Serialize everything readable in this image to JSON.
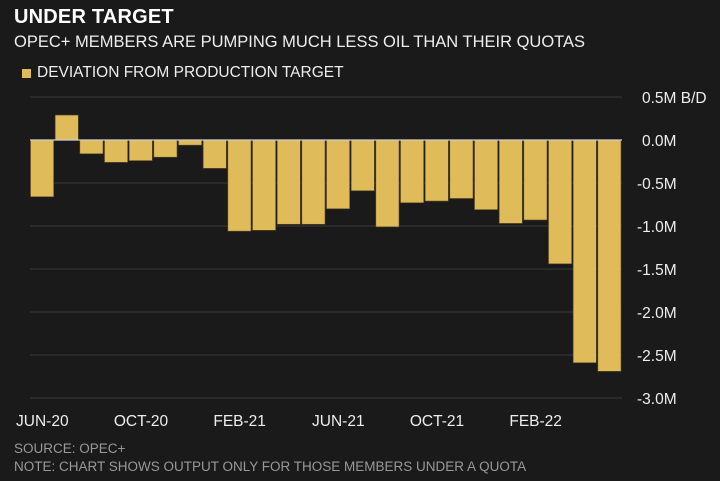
{
  "title": "UNDER TARGET",
  "subtitle": "OPEC+ MEMBERS ARE PUMPING MUCH LESS OIL THAN THEIR QUOTAS",
  "source": "SOURCE: OPEC+",
  "note": "NOTE: CHART SHOWS OUTPUT ONLY FOR THOSE MEMBERS UNDER A QUOTA",
  "colors": {
    "bar": "#dfbb5a",
    "background": "#1a1a1a",
    "grid": "#3a3a3a"
  },
  "chart_data": {
    "type": "bar",
    "legend": "DEVIATION FROM PRODUCTION TARGET",
    "legend_position": "top-left",
    "grid": true,
    "ylim": [
      -3.0,
      0.5
    ],
    "yticks": [
      0.5,
      0.0,
      -0.5,
      -1.0,
      -1.5,
      -2.0,
      -2.5,
      -3.0
    ],
    "ytick_labels": [
      "0.5M B/D",
      "0.0M",
      "-0.5M",
      "-1.0M",
      "-1.5M",
      "-2.0M",
      "-2.5M",
      "-3.0M"
    ],
    "yaxis_position": "right",
    "xtick_labels": [
      {
        "index": 0,
        "label": "JUN-20"
      },
      {
        "index": 4,
        "label": "OCT-20"
      },
      {
        "index": 8,
        "label": "FEB-21"
      },
      {
        "index": 12,
        "label": "JUN-21"
      },
      {
        "index": 16,
        "label": "OCT-21"
      },
      {
        "index": 20,
        "label": "FEB-22"
      }
    ],
    "categories": [
      "JUN-20",
      "JUL-20",
      "AUG-20",
      "SEP-20",
      "OCT-20",
      "NOV-20",
      "DEC-20",
      "JAN-21",
      "FEB-21",
      "MAR-21",
      "APR-21",
      "MAY-21",
      "JUN-21",
      "JUL-21",
      "AUG-21",
      "SEP-21",
      "OCT-21",
      "NOV-21",
      "DEC-21",
      "JAN-22",
      "FEB-22",
      "MAR-22",
      "APR-22",
      "MAY-22"
    ],
    "values": [
      -0.66,
      0.29,
      -0.16,
      -0.26,
      -0.24,
      -0.2,
      -0.06,
      -0.33,
      -1.06,
      -1.05,
      -0.98,
      -0.98,
      -0.8,
      -0.59,
      -1.01,
      -0.73,
      -0.71,
      -0.68,
      -0.81,
      -0.97,
      -0.93,
      -1.44,
      -2.59,
      -2.69
    ]
  }
}
